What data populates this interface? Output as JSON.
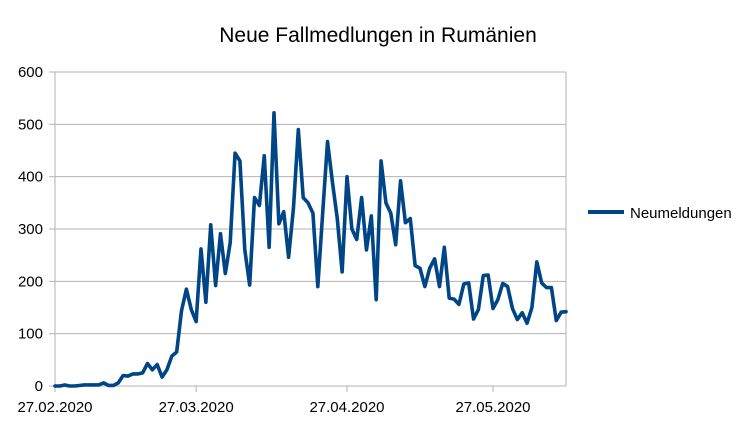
{
  "chart_data": {
    "type": "line",
    "title": "Neue Fallmedlungen in Rumänien",
    "xlabel": "",
    "ylabel": "",
    "ylim": [
      0,
      600
    ],
    "yticks": [
      0,
      100,
      200,
      300,
      400,
      500,
      600
    ],
    "xticks": [
      "27.02.2020",
      "27.03.2020",
      "27.04.2020",
      "27.05.2020"
    ],
    "grid": "horizontal",
    "legend_position": "right",
    "colors": {
      "series": "#004586",
      "grid": "#b3b3b3"
    },
    "x": [
      "27.02.2020",
      "28.02.2020",
      "29.02.2020",
      "01.03.2020",
      "02.03.2020",
      "03.03.2020",
      "04.03.2020",
      "05.03.2020",
      "06.03.2020",
      "07.03.2020",
      "08.03.2020",
      "09.03.2020",
      "10.03.2020",
      "11.03.2020",
      "12.03.2020",
      "13.03.2020",
      "14.03.2020",
      "15.03.2020",
      "16.03.2020",
      "17.03.2020",
      "18.03.2020",
      "19.03.2020",
      "20.03.2020",
      "21.03.2020",
      "22.03.2020",
      "23.03.2020",
      "24.03.2020",
      "25.03.2020",
      "26.03.2020",
      "27.03.2020",
      "28.03.2020",
      "29.03.2020",
      "30.03.2020",
      "31.03.2020",
      "01.04.2020",
      "02.04.2020",
      "03.04.2020",
      "04.04.2020",
      "05.04.2020",
      "06.04.2020",
      "07.04.2020",
      "08.04.2020",
      "09.04.2020",
      "10.04.2020",
      "11.04.2020",
      "12.04.2020",
      "13.04.2020",
      "14.04.2020",
      "15.04.2020",
      "16.04.2020",
      "17.04.2020",
      "18.04.2020",
      "19.04.2020",
      "20.04.2020",
      "21.04.2020",
      "22.04.2020",
      "23.04.2020",
      "24.04.2020",
      "25.04.2020",
      "26.04.2020",
      "27.04.2020",
      "28.04.2020",
      "29.04.2020",
      "30.04.2020",
      "01.05.2020",
      "02.05.2020",
      "03.05.2020",
      "04.05.2020",
      "05.05.2020",
      "06.05.2020",
      "07.05.2020",
      "08.05.2020",
      "09.05.2020",
      "10.05.2020",
      "11.05.2020",
      "12.05.2020",
      "13.05.2020",
      "14.05.2020",
      "15.05.2020",
      "16.05.2020",
      "17.05.2020",
      "18.05.2020",
      "19.05.2020",
      "20.05.2020",
      "21.05.2020",
      "22.05.2020",
      "23.05.2020",
      "24.05.2020",
      "25.05.2020",
      "26.05.2020",
      "27.05.2020",
      "28.05.2020",
      "29.05.2020",
      "30.05.2020",
      "31.05.2020",
      "01.06.2020",
      "02.06.2020",
      "03.06.2020",
      "04.06.2020",
      "05.06.2020",
      "06.06.2020",
      "07.06.2020",
      "08.06.2020",
      "09.06.2020",
      "10.06.2020",
      "11.06.2020"
    ],
    "series": [
      {
        "name": "Neumeldungen",
        "values": [
          0,
          0,
          2,
          0,
          0,
          1,
          2,
          2,
          2,
          2,
          6,
          1,
          1,
          6,
          20,
          19,
          23,
          23,
          25,
          43,
          31,
          41,
          17,
          31,
          57,
          65,
          144,
          185,
          146,
          123,
          262,
          160,
          308,
          192,
          291,
          215,
          274,
          445,
          430,
          260,
          193,
          360,
          345,
          440,
          265,
          522,
          310,
          333,
          246,
          340,
          490,
          360,
          350,
          330,
          190,
          330,
          467,
          390,
          320,
          218,
          400,
          300,
          280,
          360,
          260,
          325,
          165,
          430,
          350,
          330,
          270,
          392,
          312,
          320,
          230,
          225,
          190,
          225,
          243,
          190,
          265,
          168,
          166,
          156,
          195,
          197,
          128,
          146,
          211,
          212,
          148,
          165,
          196,
          190,
          148,
          127,
          140,
          120,
          150,
          237,
          197,
          188,
          188,
          125,
          141,
          142
        ]
      }
    ]
  }
}
